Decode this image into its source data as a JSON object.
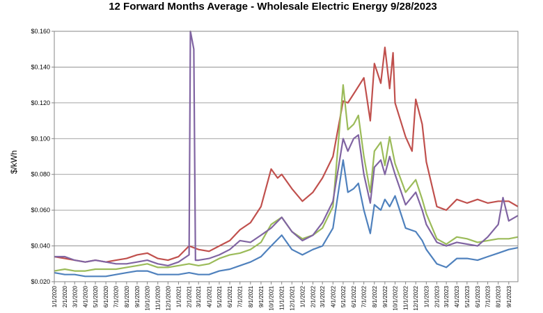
{
  "chart_data": {
    "type": "line",
    "title": "12 Forward Months Average - Wholesale Electric Energy 9/28/2023",
    "xlabel": "",
    "ylabel": "$/kWh",
    "ylim": [
      0.02,
      0.16
    ],
    "y_ticks": [
      "$0.020",
      "$0.040",
      "$0.060",
      "$0.080",
      "$0.100",
      "$0.120",
      "$0.140",
      "$0.160"
    ],
    "x_range": [
      "2020-01-01",
      "2023-09-28"
    ],
    "x_ticks": [
      "1/1/2020",
      "2/1/2020",
      "3/1/2020",
      "4/1/2020",
      "5/1/2020",
      "6/1/2020",
      "7/1/2020",
      "8/1/2020",
      "9/1/2020",
      "10/1/2020",
      "11/1/2020",
      "12/1/2020",
      "1/1/2021",
      "2/1/2021",
      "3/1/2021",
      "4/1/2021",
      "5/1/2021",
      "6/1/2021",
      "7/1/2021",
      "8/1/2021",
      "9/1/2021",
      "10/1/2021",
      "11/1/2021",
      "12/1/2021",
      "1/1/2022",
      "2/1/2022",
      "3/1/2022",
      "4/1/2022",
      "5/1/2022",
      "6/1/2022",
      "7/1/2022",
      "8/1/2022",
      "9/1/2022",
      "10/1/2022",
      "11/1/2022",
      "12/1/2022",
      "1/1/2023",
      "2/1/2023",
      "3/1/2023",
      "4/1/2023",
      "5/1/2023",
      "6/1/2023",
      "7/1/2023",
      "8/1/2023",
      "9/1/2023"
    ],
    "grid": true,
    "legend": "none",
    "series": [
      {
        "color": "#c0504d",
        "points": [
          [
            "2020-01-01",
            0.034
          ],
          [
            "2020-02-01",
            0.033
          ],
          [
            "2020-03-01",
            0.032
          ],
          [
            "2020-04-01",
            0.031
          ],
          [
            "2020-05-01",
            0.032
          ],
          [
            "2020-06-01",
            0.031
          ],
          [
            "2020-07-01",
            0.032
          ],
          [
            "2020-08-01",
            0.033
          ],
          [
            "2020-09-01",
            0.035
          ],
          [
            "2020-10-01",
            0.036
          ],
          [
            "2020-11-01",
            0.033
          ],
          [
            "2020-12-01",
            0.032
          ],
          [
            "2021-01-01",
            0.034
          ],
          [
            "2021-02-01",
            0.04
          ],
          [
            "2021-03-01",
            0.038
          ],
          [
            "2021-04-01",
            0.037
          ],
          [
            "2021-05-01",
            0.04
          ],
          [
            "2021-06-01",
            0.043
          ],
          [
            "2021-07-01",
            0.049
          ],
          [
            "2021-08-01",
            0.053
          ],
          [
            "2021-09-01",
            0.062
          ],
          [
            "2021-10-01",
            0.083
          ],
          [
            "2021-10-20",
            0.078
          ],
          [
            "2021-11-01",
            0.08
          ],
          [
            "2021-12-01",
            0.072
          ],
          [
            "2022-01-01",
            0.065
          ],
          [
            "2022-02-01",
            0.07
          ],
          [
            "2022-03-01",
            0.078
          ],
          [
            "2022-04-01",
            0.09
          ],
          [
            "2022-05-01",
            0.121
          ],
          [
            "2022-05-15",
            0.12
          ],
          [
            "2022-06-01",
            0.125
          ],
          [
            "2022-07-01",
            0.134
          ],
          [
            "2022-07-20",
            0.11
          ],
          [
            "2022-08-01",
            0.142
          ],
          [
            "2022-08-20",
            0.131
          ],
          [
            "2022-09-01",
            0.151
          ],
          [
            "2022-09-15",
            0.128
          ],
          [
            "2022-09-25",
            0.148
          ],
          [
            "2022-10-01",
            0.12
          ],
          [
            "2022-11-01",
            0.101
          ],
          [
            "2022-11-20",
            0.093
          ],
          [
            "2022-12-01",
            0.122
          ],
          [
            "2022-12-20",
            0.108
          ],
          [
            "2023-01-01",
            0.087
          ],
          [
            "2023-02-01",
            0.062
          ],
          [
            "2023-03-01",
            0.06
          ],
          [
            "2023-04-01",
            0.066
          ],
          [
            "2023-05-01",
            0.064
          ],
          [
            "2023-06-01",
            0.066
          ],
          [
            "2023-07-01",
            0.064
          ],
          [
            "2023-08-01",
            0.065
          ],
          [
            "2023-09-01",
            0.065
          ],
          [
            "2023-09-28",
            0.062
          ]
        ]
      },
      {
        "color": "#9bbb59",
        "points": [
          [
            "2020-01-01",
            0.026
          ],
          [
            "2020-02-01",
            0.027
          ],
          [
            "2020-03-01",
            0.026
          ],
          [
            "2020-04-01",
            0.026
          ],
          [
            "2020-05-01",
            0.027
          ],
          [
            "2020-06-01",
            0.027
          ],
          [
            "2020-07-01",
            0.027
          ],
          [
            "2020-08-01",
            0.028
          ],
          [
            "2020-09-01",
            0.029
          ],
          [
            "2020-10-01",
            0.03
          ],
          [
            "2020-11-01",
            0.028
          ],
          [
            "2020-12-01",
            0.028
          ],
          [
            "2021-01-01",
            0.029
          ],
          [
            "2021-02-01",
            0.03
          ],
          [
            "2021-03-01",
            0.029
          ],
          [
            "2021-04-01",
            0.03
          ],
          [
            "2021-05-01",
            0.033
          ],
          [
            "2021-06-01",
            0.035
          ],
          [
            "2021-07-01",
            0.036
          ],
          [
            "2021-08-01",
            0.038
          ],
          [
            "2021-09-01",
            0.042
          ],
          [
            "2021-10-01",
            0.052
          ],
          [
            "2021-11-01",
            0.056
          ],
          [
            "2021-12-01",
            0.048
          ],
          [
            "2022-01-01",
            0.044
          ],
          [
            "2022-02-01",
            0.046
          ],
          [
            "2022-03-01",
            0.05
          ],
          [
            "2022-04-01",
            0.062
          ],
          [
            "2022-05-01",
            0.13
          ],
          [
            "2022-05-15",
            0.105
          ],
          [
            "2022-06-01",
            0.108
          ],
          [
            "2022-06-15",
            0.113
          ],
          [
            "2022-07-01",
            0.09
          ],
          [
            "2022-07-20",
            0.07
          ],
          [
            "2022-08-01",
            0.093
          ],
          [
            "2022-08-20",
            0.098
          ],
          [
            "2022-09-01",
            0.085
          ],
          [
            "2022-09-15",
            0.101
          ],
          [
            "2022-10-01",
            0.086
          ],
          [
            "2022-11-01",
            0.07
          ],
          [
            "2022-12-01",
            0.077
          ],
          [
            "2022-12-20",
            0.066
          ],
          [
            "2023-01-01",
            0.058
          ],
          [
            "2023-02-01",
            0.044
          ],
          [
            "2023-03-01",
            0.041
          ],
          [
            "2023-04-01",
            0.045
          ],
          [
            "2023-05-01",
            0.044
          ],
          [
            "2023-06-01",
            0.042
          ],
          [
            "2023-07-01",
            0.043
          ],
          [
            "2023-08-01",
            0.044
          ],
          [
            "2023-09-01",
            0.044
          ],
          [
            "2023-09-28",
            0.045
          ]
        ]
      },
      {
        "color": "#8064a2",
        "points": [
          [
            "2020-01-01",
            0.034
          ],
          [
            "2020-02-01",
            0.034
          ],
          [
            "2020-03-01",
            0.032
          ],
          [
            "2020-04-01",
            0.031
          ],
          [
            "2020-05-01",
            0.032
          ],
          [
            "2020-06-01",
            0.031
          ],
          [
            "2020-07-01",
            0.03
          ],
          [
            "2020-08-01",
            0.03
          ],
          [
            "2020-09-01",
            0.031
          ],
          [
            "2020-10-01",
            0.032
          ],
          [
            "2020-11-01",
            0.03
          ],
          [
            "2020-12-01",
            0.029
          ],
          [
            "2021-01-01",
            0.031
          ],
          [
            "2021-02-01",
            0.035
          ],
          [
            "2021-02-05",
            0.16
          ],
          [
            "2021-02-15",
            0.15
          ],
          [
            "2021-02-20",
            0.032
          ],
          [
            "2021-03-01",
            0.032
          ],
          [
            "2021-04-01",
            0.033
          ],
          [
            "2021-05-01",
            0.035
          ],
          [
            "2021-06-01",
            0.038
          ],
          [
            "2021-07-01",
            0.043
          ],
          [
            "2021-08-01",
            0.042
          ],
          [
            "2021-09-01",
            0.046
          ],
          [
            "2021-10-01",
            0.05
          ],
          [
            "2021-11-01",
            0.056
          ],
          [
            "2021-12-01",
            0.048
          ],
          [
            "2022-01-01",
            0.043
          ],
          [
            "2022-02-01",
            0.046
          ],
          [
            "2022-03-01",
            0.053
          ],
          [
            "2022-04-01",
            0.065
          ],
          [
            "2022-05-01",
            0.1
          ],
          [
            "2022-05-15",
            0.093
          ],
          [
            "2022-06-01",
            0.1
          ],
          [
            "2022-06-15",
            0.102
          ],
          [
            "2022-07-01",
            0.08
          ],
          [
            "2022-07-20",
            0.064
          ],
          [
            "2022-08-01",
            0.084
          ],
          [
            "2022-08-20",
            0.088
          ],
          [
            "2022-09-01",
            0.08
          ],
          [
            "2022-09-15",
            0.09
          ],
          [
            "2022-10-01",
            0.08
          ],
          [
            "2022-11-01",
            0.063
          ],
          [
            "2022-12-01",
            0.07
          ],
          [
            "2022-12-20",
            0.06
          ],
          [
            "2023-01-01",
            0.052
          ],
          [
            "2023-02-01",
            0.042
          ],
          [
            "2023-03-01",
            0.04
          ],
          [
            "2023-04-01",
            0.042
          ],
          [
            "2023-05-01",
            0.041
          ],
          [
            "2023-06-01",
            0.04
          ],
          [
            "2023-07-01",
            0.045
          ],
          [
            "2023-08-01",
            0.052
          ],
          [
            "2023-08-15",
            0.067
          ],
          [
            "2023-09-01",
            0.054
          ],
          [
            "2023-09-28",
            0.057
          ]
        ]
      },
      {
        "color": "#4f81bd",
        "points": [
          [
            "2020-01-01",
            0.025
          ],
          [
            "2020-02-01",
            0.024
          ],
          [
            "2020-03-01",
            0.024
          ],
          [
            "2020-04-01",
            0.023
          ],
          [
            "2020-05-01",
            0.023
          ],
          [
            "2020-06-01",
            0.023
          ],
          [
            "2020-07-01",
            0.024
          ],
          [
            "2020-08-01",
            0.025
          ],
          [
            "2020-09-01",
            0.026
          ],
          [
            "2020-10-01",
            0.026
          ],
          [
            "2020-11-01",
            0.024
          ],
          [
            "2020-12-01",
            0.024
          ],
          [
            "2021-01-01",
            0.024
          ],
          [
            "2021-02-01",
            0.025
          ],
          [
            "2021-03-01",
            0.024
          ],
          [
            "2021-04-01",
            0.024
          ],
          [
            "2021-05-01",
            0.026
          ],
          [
            "2021-06-01",
            0.027
          ],
          [
            "2021-07-01",
            0.029
          ],
          [
            "2021-08-01",
            0.031
          ],
          [
            "2021-09-01",
            0.034
          ],
          [
            "2021-10-01",
            0.04
          ],
          [
            "2021-11-01",
            0.046
          ],
          [
            "2021-12-01",
            0.038
          ],
          [
            "2022-01-01",
            0.035
          ],
          [
            "2022-02-01",
            0.038
          ],
          [
            "2022-03-01",
            0.04
          ],
          [
            "2022-04-01",
            0.05
          ],
          [
            "2022-05-01",
            0.088
          ],
          [
            "2022-05-15",
            0.07
          ],
          [
            "2022-06-01",
            0.072
          ],
          [
            "2022-06-15",
            0.075
          ],
          [
            "2022-07-01",
            0.06
          ],
          [
            "2022-07-20",
            0.047
          ],
          [
            "2022-08-01",
            0.063
          ],
          [
            "2022-08-20",
            0.06
          ],
          [
            "2022-09-01",
            0.066
          ],
          [
            "2022-09-15",
            0.062
          ],
          [
            "2022-10-01",
            0.068
          ],
          [
            "2022-11-01",
            0.05
          ],
          [
            "2022-12-01",
            0.048
          ],
          [
            "2022-12-20",
            0.043
          ],
          [
            "2023-01-01",
            0.038
          ],
          [
            "2023-02-01",
            0.03
          ],
          [
            "2023-03-01",
            0.028
          ],
          [
            "2023-04-01",
            0.033
          ],
          [
            "2023-05-01",
            0.033
          ],
          [
            "2023-06-01",
            0.032
          ],
          [
            "2023-07-01",
            0.034
          ],
          [
            "2023-08-01",
            0.036
          ],
          [
            "2023-09-01",
            0.038
          ],
          [
            "2023-09-28",
            0.039
          ]
        ]
      }
    ]
  }
}
